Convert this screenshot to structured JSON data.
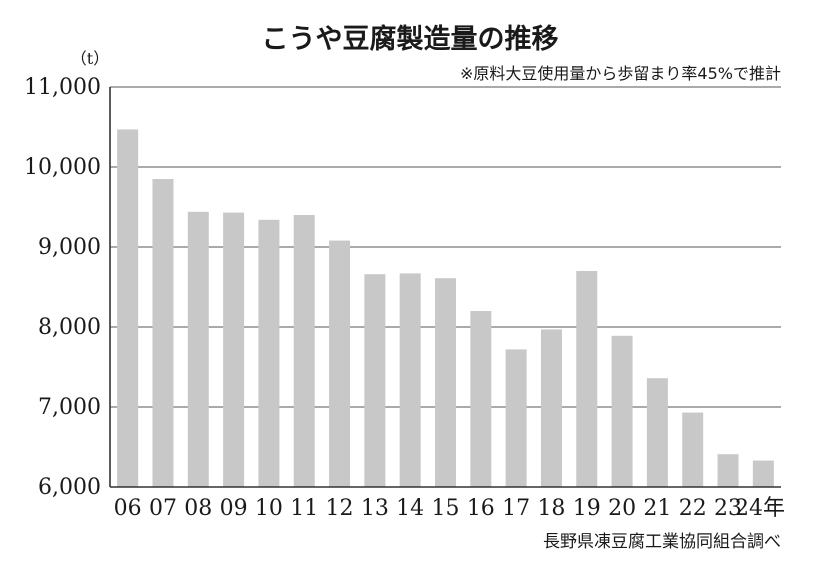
{
  "chart_data": {
    "type": "bar",
    "title": "こうや豆腐製造量の推移",
    "note": "※原料大豆使用量から歩留まり率45%で推計",
    "ylabel": "（t）",
    "xlabel": "",
    "source": "長野県凍豆腐工業協同組合調べ",
    "categories": [
      "06",
      "07",
      "08",
      "09",
      "10",
      "11",
      "12",
      "13",
      "14",
      "15",
      "16",
      "17",
      "18",
      "19",
      "20",
      "21",
      "22",
      "23",
      "24年"
    ],
    "values": [
      10470,
      9850,
      9440,
      9430,
      9340,
      9400,
      9080,
      8660,
      8670,
      8610,
      8200,
      7720,
      7970,
      8700,
      7890,
      7360,
      6930,
      6410,
      6330
    ],
    "ylim": [
      6000,
      11000
    ],
    "yticks": [
      6000,
      7000,
      8000,
      9000,
      10000,
      11000
    ],
    "ytick_labels": [
      "6,000",
      "7,000",
      "8,000",
      "9,000",
      "10,000",
      "11,000"
    ],
    "grid": true,
    "colors": {
      "bar": "#c8c8c8",
      "grid": "#555555",
      "text": "#1a1a1a"
    }
  }
}
